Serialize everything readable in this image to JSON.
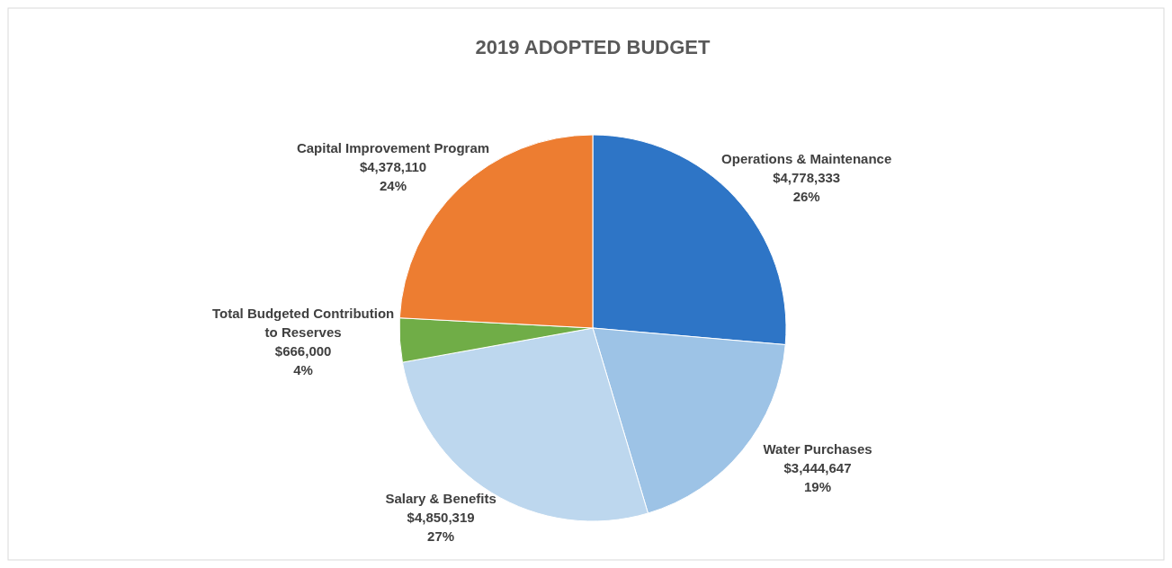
{
  "chart_data": {
    "type": "pie",
    "title": "2019 ADOPTED BUDGET",
    "categories": [
      "Operations & Maintenance",
      "Water Purchases",
      "Salary & Benefits",
      "Total Budgeted Contribution to Reserves",
      "Capital Improvement Program"
    ],
    "values": [
      4778333,
      3444647,
      4850319,
      666000,
      4378110
    ],
    "colors": [
      "#2e75c6",
      "#9dc3e6",
      "#bdd7ee",
      "#70ad47",
      "#ed7d31"
    ],
    "value_labels": [
      "$4,778,333\n26%",
      "$3,444,647\n19%",
      "$4,850,319\n27%",
      "$666,000\n4%",
      "$4,378,110\n24%"
    ]
  }
}
